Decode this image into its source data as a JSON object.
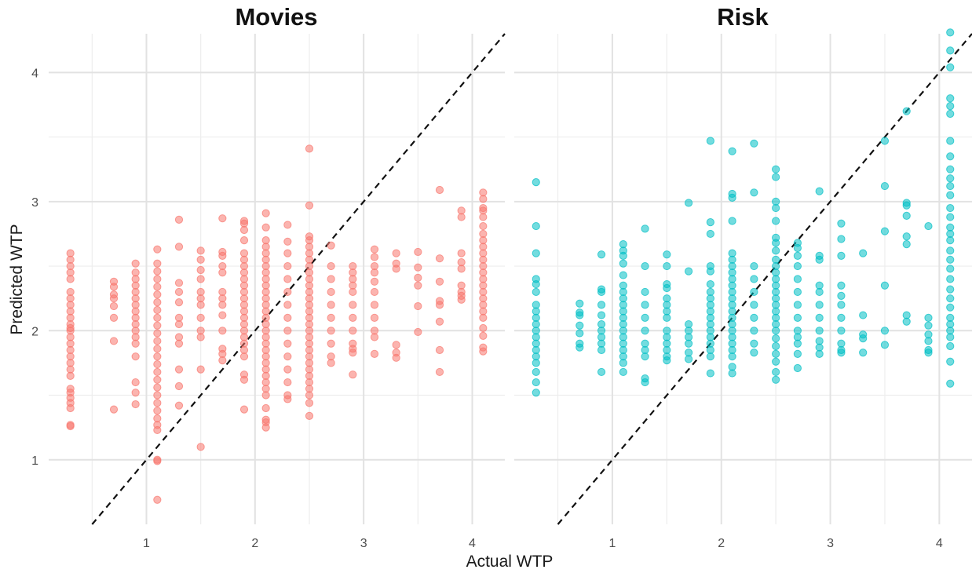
{
  "chart_data": {
    "type": "scatter",
    "xlabel": "Actual WTP",
    "ylabel": "Predicted WTP",
    "xlim": [
      0.1,
      4.3
    ],
    "ylim": [
      0.5,
      4.3
    ],
    "x_ticks": [
      1,
      2,
      3,
      4
    ],
    "y_ticks": [
      1,
      2,
      3,
      4
    ],
    "x_tick_labels": [
      "1",
      "2",
      "3",
      "4"
    ],
    "y_tick_labels": [
      "1",
      "2",
      "3",
      "4"
    ],
    "grid": true,
    "reference_line": "y = x",
    "marker_opacity": 0.55,
    "facets": [
      {
        "title": "Movies",
        "color": "#F8766D",
        "columns": [
          {
            "x": 0.3,
            "y": [
              1.26,
              1.27,
              1.4,
              1.44,
              1.48,
              1.52,
              1.55,
              1.65,
              1.7,
              1.75,
              1.8,
              1.85,
              1.9,
              1.95,
              2.0,
              2.02,
              2.05,
              2.1,
              2.15,
              2.2,
              2.25,
              2.3,
              2.4,
              2.45,
              2.5,
              2.55,
              2.6
            ]
          },
          {
            "x": 0.7,
            "y": [
              1.39,
              1.92,
              2.1,
              2.19,
              2.25,
              2.28,
              2.34,
              2.38
            ]
          },
          {
            "x": 0.9,
            "y": [
              1.43,
              1.52,
              1.6,
              1.8,
              1.9,
              1.95,
              2.0,
              2.05,
              2.1,
              2.15,
              2.2,
              2.25,
              2.3,
              2.35,
              2.4,
              2.45,
              2.52
            ]
          },
          {
            "x": 1.1,
            "y": [
              0.69,
              0.99,
              1.0,
              1.23,
              1.27,
              1.32,
              1.38,
              1.44,
              1.5,
              1.56,
              1.62,
              1.68,
              1.74,
              1.8,
              1.86,
              1.92,
              1.98,
              2.04,
              2.1,
              2.16,
              2.22,
              2.28,
              2.34,
              2.4,
              2.46,
              2.52,
              2.63
            ]
          },
          {
            "x": 1.3,
            "y": [
              1.42,
              1.57,
              1.7,
              1.9,
              1.95,
              2.05,
              2.1,
              2.22,
              2.3,
              2.37,
              2.65,
              2.86
            ]
          },
          {
            "x": 1.5,
            "y": [
              1.1,
              1.7,
              1.95,
              2.0,
              2.1,
              2.2,
              2.25,
              2.3,
              2.4,
              2.47,
              2.55,
              2.62
            ]
          },
          {
            "x": 1.7,
            "y": [
              1.77,
              1.82,
              1.86,
              2.0,
              2.12,
              2.2,
              2.25,
              2.3,
              2.45,
              2.5,
              2.58,
              2.61,
              2.87
            ]
          },
          {
            "x": 1.9,
            "y": [
              1.39,
              1.62,
              1.66,
              1.8,
              1.85,
              1.9,
              1.95,
              2.0,
              2.05,
              2.1,
              2.15,
              2.2,
              2.25,
              2.3,
              2.35,
              2.4,
              2.45,
              2.5,
              2.55,
              2.6,
              2.7,
              2.78,
              2.83,
              2.85
            ]
          },
          {
            "x": 2.1,
            "y": [
              1.25,
              1.29,
              1.31,
              1.4,
              1.5,
              1.55,
              1.6,
              1.65,
              1.7,
              1.75,
              1.8,
              1.85,
              1.9,
              1.95,
              2.0,
              2.05,
              2.1,
              2.15,
              2.2,
              2.25,
              2.3,
              2.35,
              2.4,
              2.45,
              2.5,
              2.55,
              2.6,
              2.65,
              2.7,
              2.8,
              2.91
            ]
          },
          {
            "x": 2.3,
            "y": [
              1.47,
              1.5,
              1.6,
              1.7,
              1.8,
              1.9,
              2.0,
              2.1,
              2.2,
              2.3,
              2.4,
              2.5,
              2.6,
              2.69,
              2.82
            ]
          },
          {
            "x": 2.5,
            "y": [
              1.34,
              1.44,
              1.5,
              1.55,
              1.6,
              1.65,
              1.7,
              1.75,
              1.8,
              1.85,
              1.9,
              1.95,
              2.0,
              2.05,
              2.1,
              2.15,
              2.2,
              2.25,
              2.3,
              2.35,
              2.4,
              2.45,
              2.5,
              2.55,
              2.6,
              2.65,
              2.7,
              2.73,
              2.97,
              3.41
            ]
          },
          {
            "x": 2.7,
            "y": [
              1.75,
              1.8,
              1.9,
              2.0,
              2.1,
              2.2,
              2.3,
              2.4,
              2.5,
              2.66
            ]
          },
          {
            "x": 2.9,
            "y": [
              1.66,
              1.83,
              1.86,
              1.9,
              2.0,
              2.1,
              2.2,
              2.3,
              2.35,
              2.4,
              2.45,
              2.5
            ]
          },
          {
            "x": 3.1,
            "y": [
              1.82,
              1.95,
              2.0,
              2.1,
              2.2,
              2.3,
              2.38,
              2.45,
              2.5,
              2.57,
              2.63
            ]
          },
          {
            "x": 3.3,
            "y": [
              1.79,
              1.83,
              1.89,
              2.48,
              2.52,
              2.6
            ]
          },
          {
            "x": 3.5,
            "y": [
              1.99,
              2.19,
              2.35,
              2.41,
              2.49,
              2.61
            ]
          },
          {
            "x": 3.7,
            "y": [
              1.68,
              1.85,
              2.07,
              2.2,
              2.23,
              2.38,
              2.56,
              3.09
            ]
          },
          {
            "x": 3.9,
            "y": [
              2.24,
              2.27,
              2.3,
              2.35,
              2.48,
              2.53,
              2.6,
              2.88,
              2.93
            ]
          },
          {
            "x": 4.1,
            "y": [
              1.84,
              1.87,
              1.96,
              2.02,
              2.1,
              2.15,
              2.2,
              2.25,
              2.3,
              2.35,
              2.4,
              2.45,
              2.5,
              2.55,
              2.6,
              2.65,
              2.7,
              2.75,
              2.81,
              2.88,
              2.93,
              2.95,
              3.02,
              3.07
            ]
          }
        ]
      },
      {
        "title": "Risk",
        "color": "#00BFC4",
        "columns": [
          {
            "x": 0.3,
            "y": [
              1.52,
              1.6,
              1.68,
              1.75,
              1.8,
              1.85,
              1.9,
              1.95,
              2.0,
              2.05,
              2.1,
              2.15,
              2.2,
              2.3,
              2.36,
              2.4,
              2.6,
              2.81,
              3.15
            ]
          },
          {
            "x": 0.7,
            "y": [
              1.87,
              1.9,
              1.98,
              2.04,
              2.12,
              2.14,
              2.21
            ]
          },
          {
            "x": 0.9,
            "y": [
              1.68,
              1.85,
              1.9,
              1.95,
              2.0,
              2.05,
              2.12,
              2.2,
              2.3,
              2.32,
              2.59
            ]
          },
          {
            "x": 1.1,
            "y": [
              1.68,
              1.75,
              1.8,
              1.85,
              1.9,
              1.95,
              2.0,
              2.05,
              2.1,
              2.15,
              2.2,
              2.25,
              2.3,
              2.35,
              2.43,
              2.52,
              2.58,
              2.62,
              2.67
            ]
          },
          {
            "x": 1.3,
            "y": [
              1.6,
              1.63,
              1.8,
              1.85,
              1.9,
              2.0,
              2.1,
              2.2,
              2.3,
              2.5,
              2.79
            ]
          },
          {
            "x": 1.5,
            "y": [
              1.77,
              1.8,
              1.85,
              1.9,
              1.95,
              2.0,
              2.1,
              2.15,
              2.2,
              2.25,
              2.33,
              2.36,
              2.5,
              2.59
            ]
          },
          {
            "x": 1.7,
            "y": [
              1.78,
              1.83,
              1.9,
              1.95,
              2.0,
              2.05,
              2.46,
              2.99
            ]
          },
          {
            "x": 1.9,
            "y": [
              1.67,
              1.8,
              1.85,
              1.9,
              1.95,
              2.0,
              2.05,
              2.1,
              2.15,
              2.2,
              2.25,
              2.3,
              2.36,
              2.46,
              2.5,
              2.75,
              2.84,
              3.47
            ]
          },
          {
            "x": 2.1,
            "y": [
              1.67,
              1.72,
              1.8,
              1.85,
              1.9,
              1.95,
              2.0,
              2.05,
              2.1,
              2.15,
              2.2,
              2.25,
              2.3,
              2.35,
              2.4,
              2.45,
              2.5,
              2.55,
              2.6,
              2.85,
              3.03,
              3.06,
              3.39
            ]
          },
          {
            "x": 2.3,
            "y": [
              1.83,
              1.9,
              2.0,
              2.1,
              2.2,
              2.3,
              2.4,
              2.5,
              3.07,
              3.45
            ]
          },
          {
            "x": 2.5,
            "y": [
              1.62,
              1.68,
              1.76,
              1.82,
              1.88,
              1.94,
              2.0,
              2.05,
              2.1,
              2.15,
              2.2,
              2.25,
              2.3,
              2.35,
              2.4,
              2.45,
              2.5,
              2.55,
              2.62,
              2.68,
              2.72,
              2.85,
              2.95,
              3.0,
              3.19,
              3.25
            ]
          },
          {
            "x": 2.7,
            "y": [
              1.71,
              1.82,
              1.9,
              1.95,
              2.0,
              2.1,
              2.2,
              2.3,
              2.4,
              2.5,
              2.58,
              2.64,
              2.68
            ]
          },
          {
            "x": 2.9,
            "y": [
              1.82,
              1.87,
              1.92,
              2.0,
              2.1,
              2.2,
              2.3,
              2.35,
              2.55,
              2.58,
              3.08
            ]
          },
          {
            "x": 3.1,
            "y": [
              1.83,
              1.85,
              1.9,
              2.0,
              2.1,
              2.2,
              2.27,
              2.35,
              2.58,
              2.71,
              2.83
            ]
          },
          {
            "x": 3.3,
            "y": [
              1.83,
              1.94,
              1.97,
              2.12,
              2.6
            ]
          },
          {
            "x": 3.5,
            "y": [
              1.89,
              2.0,
              2.35,
              2.77,
              3.12,
              3.47
            ]
          },
          {
            "x": 3.7,
            "y": [
              2.07,
              2.12,
              2.67,
              2.73,
              2.89,
              2.97,
              2.99,
              3.7
            ]
          },
          {
            "x": 3.9,
            "y": [
              1.83,
              1.85,
              1.92,
              1.97,
              2.04,
              2.1,
              2.81
            ]
          },
          {
            "x": 4.1,
            "y": [
              1.59,
              1.76,
              1.88,
              1.95,
              2.0,
              2.05,
              2.1,
              2.18,
              2.25,
              2.32,
              2.4,
              2.48,
              2.55,
              2.62,
              2.7,
              2.75,
              2.8,
              2.88,
              2.95,
              3.05,
              3.12,
              3.18,
              3.25,
              3.35,
              3.47,
              3.68,
              3.74,
              3.8,
              4.04,
              4.17,
              4.31
            ]
          }
        ]
      }
    ]
  }
}
